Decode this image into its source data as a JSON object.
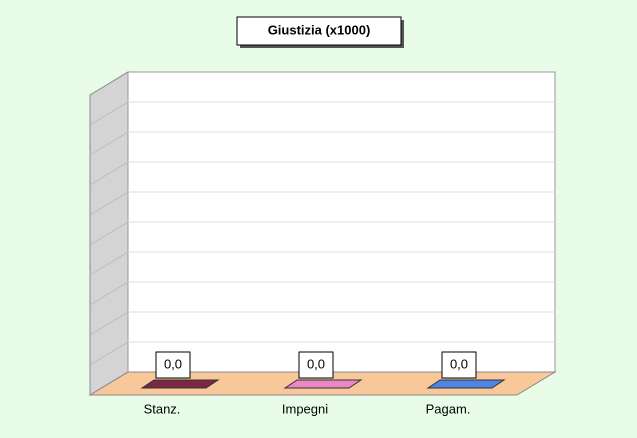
{
  "chart_data": {
    "type": "bar3d",
    "title": "Giustizia (x1000)",
    "categories": [
      "Stanz.",
      "Impegni",
      "Pagam."
    ],
    "series": [
      {
        "name": null,
        "values": [
          0,
          0,
          0
        ],
        "value_labels": [
          "0,0",
          "0,0",
          "0,0"
        ],
        "colors": [
          "#7a2846",
          "#e889c6",
          "#4f86e6"
        ]
      }
    ]
  }
}
